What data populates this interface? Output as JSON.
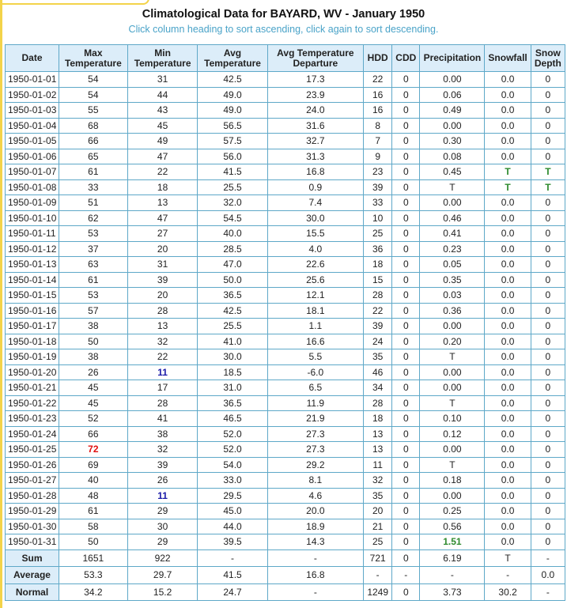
{
  "title": "Climatological Data for BAYARD, WV - January 1950",
  "subtitle": "Click column heading to sort ascending, click again to sort descending.",
  "columns": [
    "Date",
    "Max Temperature",
    "Min Temperature",
    "Avg Temperature",
    "Avg Temperature Departure",
    "HDD",
    "CDD",
    "Precipitation",
    "Snowfall",
    "Snow Depth"
  ],
  "rows": [
    [
      "1950-01-01",
      "54",
      "31",
      "42.5",
      "17.3",
      "22",
      "0",
      "0.00",
      "0.0",
      "0"
    ],
    [
      "1950-01-02",
      "54",
      "44",
      "49.0",
      "23.9",
      "16",
      "0",
      "0.06",
      "0.0",
      "0"
    ],
    [
      "1950-01-03",
      "55",
      "43",
      "49.0",
      "24.0",
      "16",
      "0",
      "0.49",
      "0.0",
      "0"
    ],
    [
      "1950-01-04",
      "68",
      "45",
      "56.5",
      "31.6",
      "8",
      "0",
      "0.00",
      "0.0",
      "0"
    ],
    [
      "1950-01-05",
      "66",
      "49",
      "57.5",
      "32.7",
      "7",
      "0",
      "0.30",
      "0.0",
      "0"
    ],
    [
      "1950-01-06",
      "65",
      "47",
      "56.0",
      "31.3",
      "9",
      "0",
      "0.08",
      "0.0",
      "0"
    ],
    [
      "1950-01-07",
      "61",
      "22",
      "41.5",
      "16.8",
      "23",
      "0",
      "0.45",
      "T",
      "T"
    ],
    [
      "1950-01-08",
      "33",
      "18",
      "25.5",
      "0.9",
      "39",
      "0",
      "T",
      "T",
      "T"
    ],
    [
      "1950-01-09",
      "51",
      "13",
      "32.0",
      "7.4",
      "33",
      "0",
      "0.00",
      "0.0",
      "0"
    ],
    [
      "1950-01-10",
      "62",
      "47",
      "54.5",
      "30.0",
      "10",
      "0",
      "0.46",
      "0.0",
      "0"
    ],
    [
      "1950-01-11",
      "53",
      "27",
      "40.0",
      "15.5",
      "25",
      "0",
      "0.41",
      "0.0",
      "0"
    ],
    [
      "1950-01-12",
      "37",
      "20",
      "28.5",
      "4.0",
      "36",
      "0",
      "0.23",
      "0.0",
      "0"
    ],
    [
      "1950-01-13",
      "63",
      "31",
      "47.0",
      "22.6",
      "18",
      "0",
      "0.05",
      "0.0",
      "0"
    ],
    [
      "1950-01-14",
      "61",
      "39",
      "50.0",
      "25.6",
      "15",
      "0",
      "0.35",
      "0.0",
      "0"
    ],
    [
      "1950-01-15",
      "53",
      "20",
      "36.5",
      "12.1",
      "28",
      "0",
      "0.03",
      "0.0",
      "0"
    ],
    [
      "1950-01-16",
      "57",
      "28",
      "42.5",
      "18.1",
      "22",
      "0",
      "0.36",
      "0.0",
      "0"
    ],
    [
      "1950-01-17",
      "38",
      "13",
      "25.5",
      "1.1",
      "39",
      "0",
      "0.00",
      "0.0",
      "0"
    ],
    [
      "1950-01-18",
      "50",
      "32",
      "41.0",
      "16.6",
      "24",
      "0",
      "0.20",
      "0.0",
      "0"
    ],
    [
      "1950-01-19",
      "38",
      "22",
      "30.0",
      "5.5",
      "35",
      "0",
      "T",
      "0.0",
      "0"
    ],
    [
      "1950-01-20",
      "26",
      "11",
      "18.5",
      "-6.0",
      "46",
      "0",
      "0.00",
      "0.0",
      "0"
    ],
    [
      "1950-01-21",
      "45",
      "17",
      "31.0",
      "6.5",
      "34",
      "0",
      "0.00",
      "0.0",
      "0"
    ],
    [
      "1950-01-22",
      "45",
      "28",
      "36.5",
      "11.9",
      "28",
      "0",
      "T",
      "0.0",
      "0"
    ],
    [
      "1950-01-23",
      "52",
      "41",
      "46.5",
      "21.9",
      "18",
      "0",
      "0.10",
      "0.0",
      "0"
    ],
    [
      "1950-01-24",
      "66",
      "38",
      "52.0",
      "27.3",
      "13",
      "0",
      "0.12",
      "0.0",
      "0"
    ],
    [
      "1950-01-25",
      "72",
      "32",
      "52.0",
      "27.3",
      "13",
      "0",
      "0.00",
      "0.0",
      "0"
    ],
    [
      "1950-01-26",
      "69",
      "39",
      "54.0",
      "29.2",
      "11",
      "0",
      "T",
      "0.0",
      "0"
    ],
    [
      "1950-01-27",
      "40",
      "26",
      "33.0",
      "8.1",
      "32",
      "0",
      "0.18",
      "0.0",
      "0"
    ],
    [
      "1950-01-28",
      "48",
      "11",
      "29.5",
      "4.6",
      "35",
      "0",
      "0.00",
      "0.0",
      "0"
    ],
    [
      "1950-01-29",
      "61",
      "29",
      "45.0",
      "20.0",
      "20",
      "0",
      "0.25",
      "0.0",
      "0"
    ],
    [
      "1950-01-30",
      "58",
      "30",
      "44.0",
      "18.9",
      "21",
      "0",
      "0.56",
      "0.0",
      "0"
    ],
    [
      "1950-01-31",
      "50",
      "29",
      "39.5",
      "14.3",
      "25",
      "0",
      "1.51",
      "0.0",
      "0"
    ]
  ],
  "summary": [
    [
      "Sum",
      "1651",
      "922",
      "-",
      "-",
      "721",
      "0",
      "6.19",
      "T",
      "-"
    ],
    [
      "Average",
      "53.3",
      "29.7",
      "41.5",
      "16.8",
      "-",
      "-",
      "-",
      "-",
      "0.0"
    ],
    [
      "Normal",
      "34.2",
      "15.2",
      "24.7",
      "-",
      "1249",
      "0",
      "3.73",
      "30.2",
      "-"
    ]
  ],
  "highlights": [
    {
      "row": "1950-01-25",
      "col": 1,
      "color": "#e01010",
      "meaning": "max"
    },
    {
      "row": "1950-01-20",
      "col": 2,
      "color": "#1a1aa8",
      "meaning": "min"
    },
    {
      "row": "1950-01-28",
      "col": 2,
      "color": "#1a1aa8",
      "meaning": "min"
    },
    {
      "row": "1950-01-31",
      "col": 7,
      "color": "#2e8b2e",
      "meaning": "max"
    },
    {
      "row": "1950-01-07",
      "col": 8,
      "color": "#2e8b2e",
      "meaning": "max"
    },
    {
      "row": "1950-01-08",
      "col": 8,
      "color": "#2e8b2e",
      "meaning": "max"
    },
    {
      "row": "1950-01-07",
      "col": 9,
      "color": "#2e8b2e",
      "meaning": "max"
    },
    {
      "row": "1950-01-08",
      "col": 9,
      "color": "#2e8b2e",
      "meaning": "max"
    }
  ]
}
